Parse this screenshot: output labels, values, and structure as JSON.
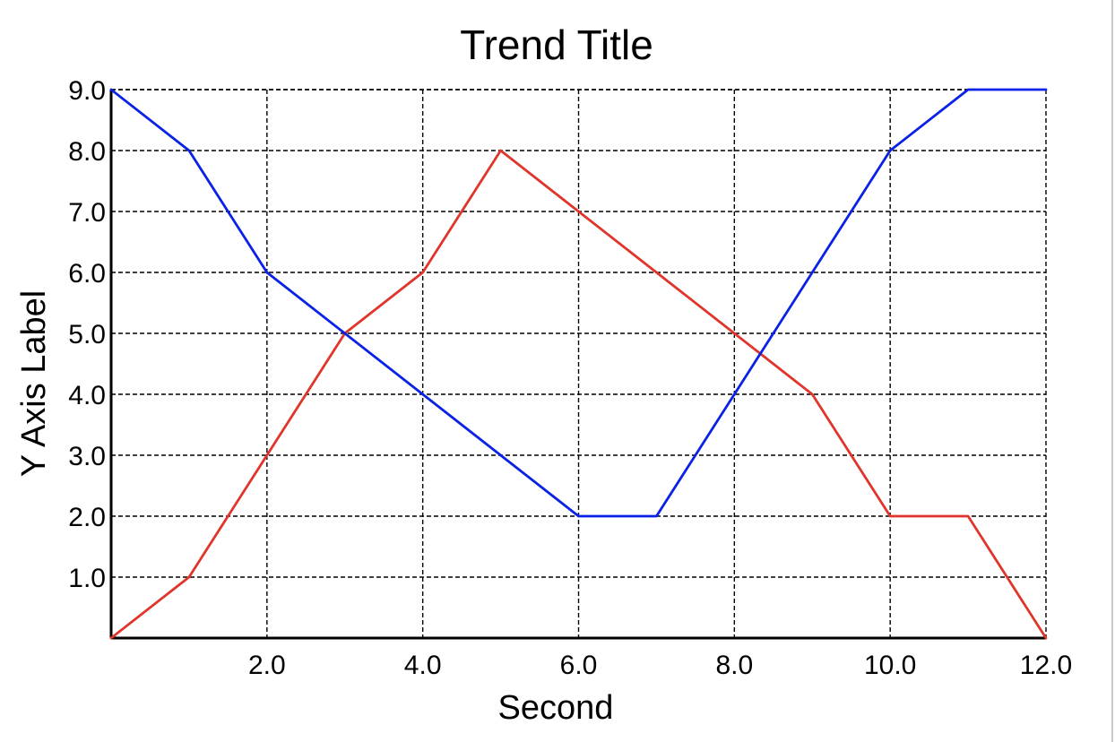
{
  "chart_data": {
    "type": "line",
    "title": "Trend Title",
    "xlabel": "Second",
    "ylabel": "Y Axis Label",
    "xlim": [
      0,
      12
    ],
    "ylim": [
      0,
      9
    ],
    "x_ticks": [
      2,
      4,
      6,
      8,
      10,
      12
    ],
    "x_tick_labels": [
      "2.0",
      "4.0",
      "6.0",
      "8.0",
      "10.0",
      "12.0"
    ],
    "y_ticks": [
      1,
      2,
      3,
      4,
      5,
      6,
      7,
      8,
      9
    ],
    "y_tick_labels": [
      "1.0",
      "2.0",
      "3.0",
      "4.0",
      "5.0",
      "6.0",
      "7.0",
      "8.0",
      "9.0"
    ],
    "grid": true,
    "grid_style": "dashed",
    "x": [
      0,
      1,
      2,
      3,
      4,
      5,
      6,
      7,
      8,
      9,
      10,
      11,
      12
    ],
    "series": [
      {
        "color": "#e0352b",
        "values": [
          0,
          1,
          3,
          5,
          6,
          8,
          7,
          6,
          5,
          4,
          2,
          2,
          0
        ]
      },
      {
        "color": "#0a22e6",
        "values": [
          9,
          8,
          6,
          5,
          4,
          3,
          2,
          2,
          4,
          6,
          8,
          9,
          9
        ]
      }
    ]
  }
}
